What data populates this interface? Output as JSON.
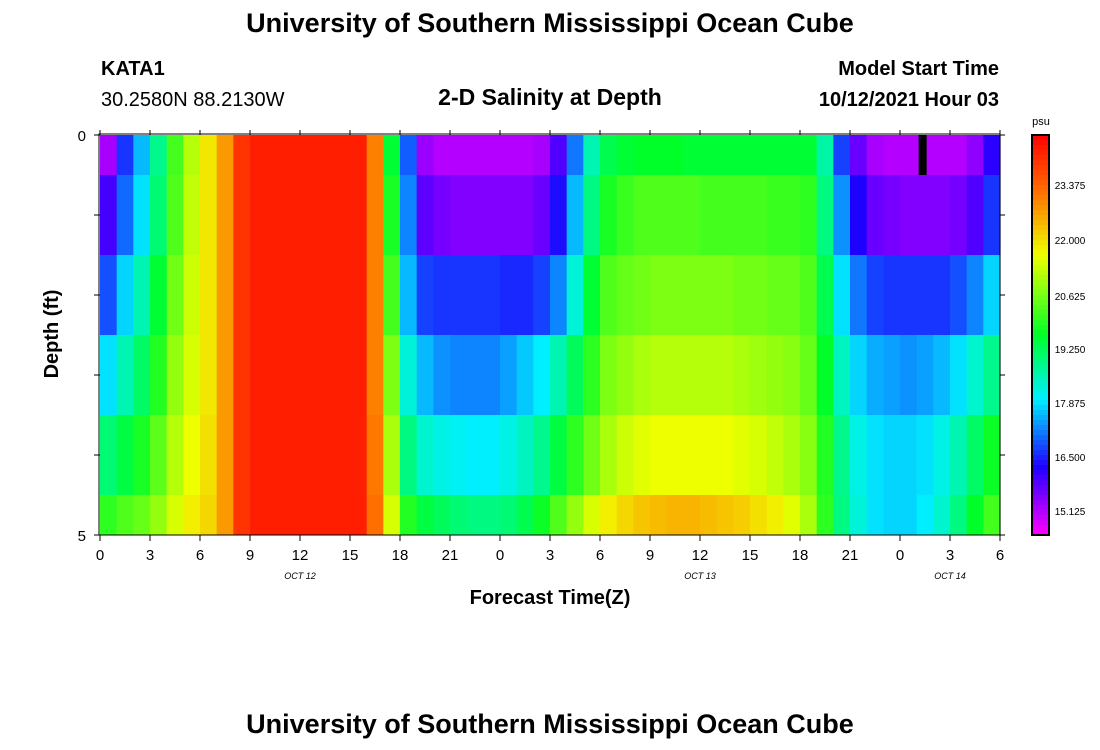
{
  "header": {
    "title": "University of Southern Mississippi Ocean Cube",
    "station": "KATA1",
    "coords": "30.2580N  88.2130W",
    "plot_title": "2-D Salinity at Depth",
    "model_label": "Model Start Time",
    "model_time": "10/12/2021 Hour 03"
  },
  "footer": {
    "title": "University of Southern Mississippi Ocean Cube"
  },
  "chart_data": {
    "type": "heatmap",
    "title": "2-D Salinity at Depth",
    "xlabel": "Forecast Time(Z)",
    "ylabel": "Depth (ft)",
    "x_ticks": [
      "0",
      "3",
      "6",
      "9",
      "12",
      "15",
      "18",
      "21",
      "0",
      "3",
      "6",
      "9",
      "12",
      "15",
      "18",
      "21",
      "0",
      "3",
      "6"
    ],
    "x_hours": [
      0,
      54
    ],
    "date_labels": [
      {
        "text": "OCT 12",
        "hour": 12
      },
      {
        "text": "OCT 13",
        "hour": 36
      },
      {
        "text": "OCT 14",
        "hour": 51
      }
    ],
    "y_ticks": [
      "0",
      "5"
    ],
    "ylim": [
      0,
      5
    ],
    "colorbar": {
      "unit": "psu",
      "labels": [
        "23.375",
        "22.000",
        "20.625",
        "19.250",
        "17.875",
        "16.500",
        "15.125"
      ],
      "vmin": 14.4,
      "vmax": 25.0
    },
    "depth_rows": 6,
    "time_columns": 54,
    "salinity_psu": [
      [
        15.1,
        16.6,
        17.6,
        18.9,
        20.3,
        21.3,
        22.1,
        23.0,
        24.3,
        24.6,
        24.6,
        24.6,
        24.6,
        24.6,
        24.6,
        24.6,
        23.3,
        19.6,
        16.9,
        15.2,
        15.0,
        15.0,
        15.0,
        15.0,
        15.0,
        15.0,
        15.1,
        15.8,
        17.1,
        18.6,
        19.4,
        19.6,
        19.7,
        19.7,
        19.7,
        19.6,
        19.6,
        19.6,
        19.6,
        19.6,
        19.6,
        19.6,
        19.6,
        18.7,
        16.7,
        15.6,
        15.1,
        15.0,
        15.0,
        15.0,
        15.0,
        15.0,
        15.3,
        16.1
      ],
      [
        15.9,
        17.0,
        17.9,
        19.1,
        20.4,
        21.4,
        22.1,
        23.0,
        24.3,
        24.6,
        24.6,
        24.6,
        24.6,
        24.6,
        24.6,
        24.6,
        23.3,
        19.9,
        17.2,
        15.7,
        15.5,
        15.4,
        15.4,
        15.4,
        15.4,
        15.4,
        15.6,
        16.3,
        17.6,
        19.0,
        19.9,
        20.2,
        20.4,
        20.4,
        20.4,
        20.4,
        20.3,
        20.3,
        20.3,
        20.3,
        20.2,
        20.2,
        20.1,
        19.0,
        17.3,
        16.2,
        15.6,
        15.5,
        15.4,
        15.4,
        15.4,
        15.5,
        15.8,
        16.6
      ],
      [
        16.8,
        17.8,
        18.6,
        19.6,
        20.7,
        21.5,
        22.1,
        23.0,
        24.3,
        24.6,
        24.6,
        24.6,
        24.6,
        24.6,
        24.6,
        24.6,
        23.3,
        20.3,
        17.6,
        16.7,
        16.6,
        16.6,
        16.6,
        16.6,
        16.5,
        16.5,
        16.7,
        17.2,
        18.3,
        19.6,
        20.4,
        20.6,
        20.7,
        20.8,
        20.8,
        20.8,
        20.8,
        20.8,
        20.7,
        20.7,
        20.6,
        20.6,
        20.4,
        19.4,
        17.9,
        17.1,
        16.7,
        16.6,
        16.6,
        16.6,
        16.6,
        16.8,
        17.2,
        17.8
      ],
      [
        17.9,
        18.6,
        19.2,
        20.0,
        21.0,
        21.6,
        22.1,
        23.0,
        24.3,
        24.6,
        24.6,
        24.6,
        24.6,
        24.6,
        24.6,
        24.6,
        23.3,
        20.8,
        18.3,
        17.6,
        17.3,
        17.2,
        17.2,
        17.2,
        17.4,
        17.7,
        18.0,
        18.6,
        19.3,
        20.1,
        20.8,
        21.0,
        21.2,
        21.3,
        21.3,
        21.3,
        21.3,
        21.3,
        21.2,
        21.1,
        21.0,
        20.9,
        20.6,
        19.7,
        18.5,
        17.8,
        17.5,
        17.4,
        17.3,
        17.4,
        17.6,
        17.9,
        18.4,
        18.9
      ],
      [
        19.1,
        19.5,
        19.9,
        20.5,
        21.3,
        21.8,
        22.2,
        23.0,
        24.3,
        24.6,
        24.6,
        24.6,
        24.6,
        24.6,
        24.6,
        24.6,
        23.4,
        21.2,
        19.0,
        18.4,
        18.2,
        18.1,
        18.0,
        18.0,
        18.2,
        18.5,
        18.9,
        19.5,
        20.1,
        20.7,
        21.2,
        21.5,
        21.7,
        21.8,
        21.8,
        21.8,
        21.8,
        21.8,
        21.7,
        21.6,
        21.4,
        21.2,
        20.9,
        20.0,
        18.9,
        18.2,
        17.9,
        17.8,
        17.8,
        17.9,
        18.2,
        18.6,
        19.2,
        19.8
      ],
      [
        20.1,
        20.4,
        20.6,
        21.0,
        21.6,
        22.0,
        22.3,
        23.0,
        24.3,
        24.6,
        24.6,
        24.6,
        24.6,
        24.6,
        24.6,
        24.6,
        23.5,
        21.6,
        20.0,
        19.5,
        19.3,
        19.1,
        19.0,
        19.0,
        19.1,
        19.4,
        19.8,
        20.4,
        21.0,
        21.6,
        22.0,
        22.3,
        22.5,
        22.6,
        22.7,
        22.7,
        22.6,
        22.5,
        22.4,
        22.2,
        22.0,
        21.7,
        21.2,
        20.1,
        19.0,
        18.3,
        17.9,
        17.8,
        17.8,
        18.0,
        18.4,
        19.0,
        19.7,
        20.3
      ]
    ],
    "missing_marker": {
      "hour": 49,
      "depth_row": 0
    }
  }
}
